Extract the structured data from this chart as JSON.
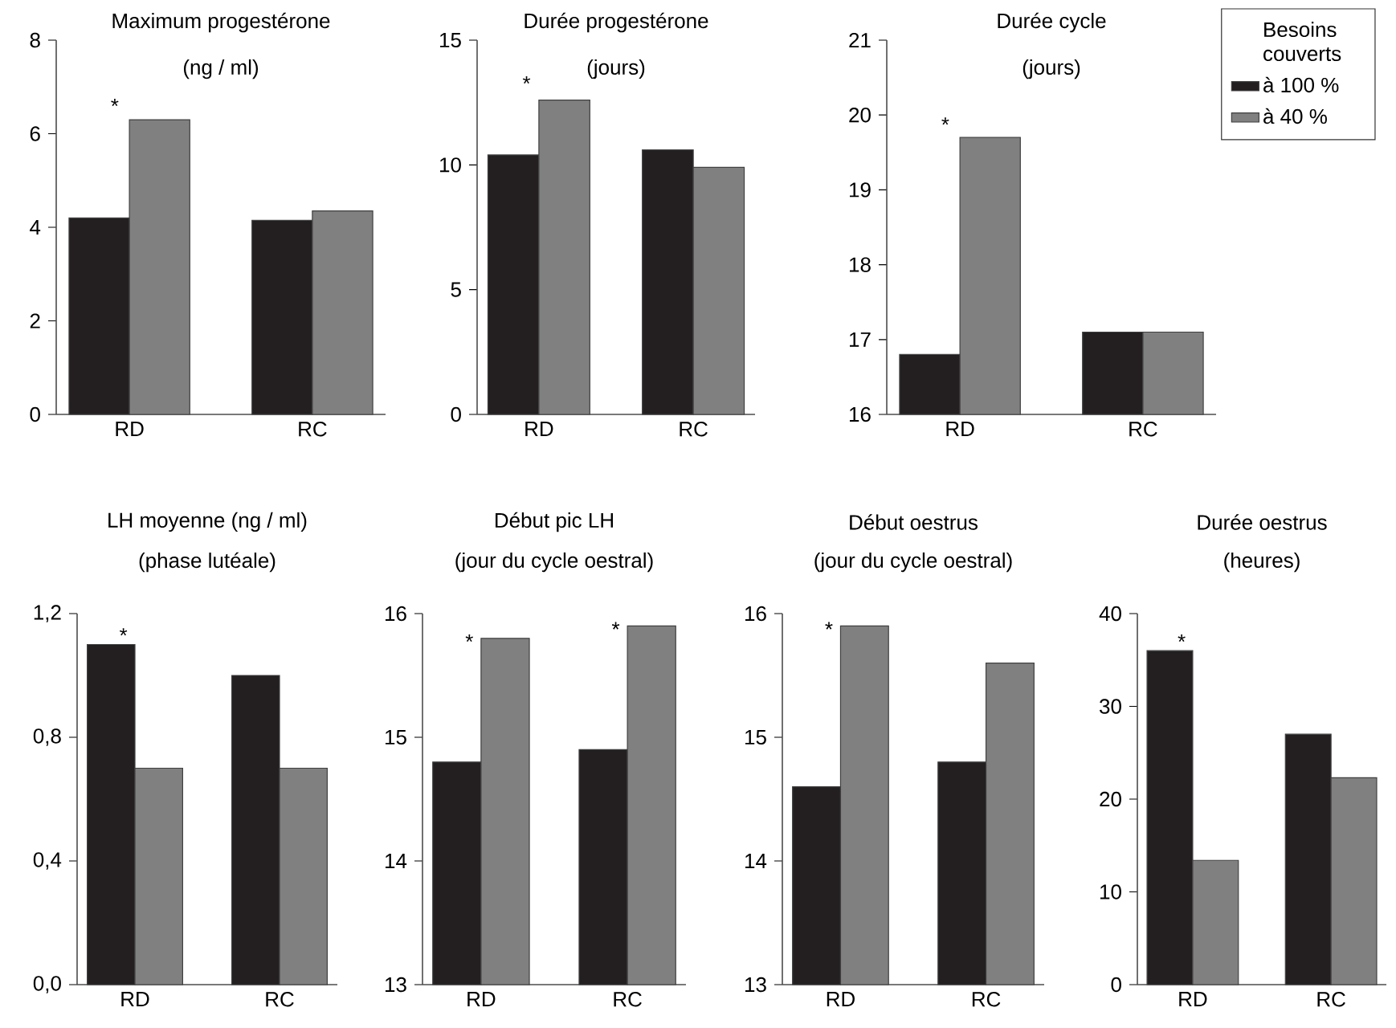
{
  "chart_data": [
    {
      "type": "bar",
      "title": "Maximum progestérone",
      "subtitle": "(ng / ml)",
      "categories": [
        "RD",
        "RC"
      ],
      "series": [
        {
          "color": "#231f20",
          "values": [
            4.2,
            4.15
          ]
        },
        {
          "color": "#808080",
          "values": [
            6.3,
            4.35
          ]
        }
      ],
      "ylim": [
        0,
        8
      ],
      "yticks": [
        0,
        2,
        4,
        6,
        8
      ],
      "annotations": [
        {
          "text": "*",
          "x": "RD",
          "y": 6.4
        }
      ]
    },
    {
      "type": "bar",
      "title": "Durée progestérone",
      "subtitle": "(jours)",
      "categories": [
        "RD",
        "RC"
      ],
      "series": [
        {
          "color": "#231f20",
          "values": [
            10.4,
            10.6
          ]
        },
        {
          "color": "#808080",
          "values": [
            12.6,
            9.9
          ]
        }
      ],
      "ylim": [
        0,
        15
      ],
      "yticks": [
        0,
        5,
        10,
        15
      ],
      "annotations": [
        {
          "text": "*",
          "x": "RD",
          "y": 12.9
        }
      ]
    },
    {
      "type": "bar",
      "title": "Durée cycle",
      "subtitle": "(jours)",
      "categories": [
        "RD",
        "RC"
      ],
      "series": [
        {
          "name": "à 100 %",
          "color": "#231f20",
          "values": [
            16.8,
            17.1
          ]
        },
        {
          "name": "à 40 %",
          "color": "#808080",
          "values": [
            19.7,
            17.1
          ]
        }
      ],
      "ylim": [
        16,
        21
      ],
      "yticks": [
        16,
        17,
        18,
        19,
        20,
        21
      ],
      "legend": "right",
      "legend_title": "Besoins couverts",
      "annotations": [
        {
          "text": "*",
          "x": "RD",
          "y": 19.75
        }
      ]
    },
    {
      "type": "bar",
      "title": "LH moyenne (ng / ml)",
      "subtitle": "(phase lutéale)",
      "categories": [
        "RD",
        "RC"
      ],
      "series": [
        {
          "color": "#231f20",
          "values": [
            1.1,
            1.0
          ]
        },
        {
          "color": "#808080",
          "values": [
            0.7,
            0.7
          ]
        }
      ],
      "ylim": [
        0,
        1.2
      ],
      "yticks": [
        {
          "value": 0,
          "label": "0,0"
        },
        {
          "value": 0.4,
          "label": "0,4"
        },
        {
          "value": 0.8,
          "label": "0,8"
        },
        {
          "value": 1.2,
          "label": "1,2"
        }
      ],
      "annotations": [
        {
          "text": "*",
          "x": "RD",
          "y": 1.1
        }
      ]
    },
    {
      "type": "bar",
      "title": "Début pic LH",
      "subtitle": "(jour du cycle oestral)",
      "categories": [
        "RD",
        "RC"
      ],
      "series": [
        {
          "color": "#231f20",
          "values": [
            14.8,
            14.9
          ]
        },
        {
          "color": "#808080",
          "values": [
            15.8,
            15.9
          ]
        }
      ],
      "ylim": [
        13,
        16
      ],
      "yticks": [
        13,
        14,
        15,
        16
      ],
      "annotations": [
        {
          "text": "*",
          "x": "RD",
          "y": 15.7
        },
        {
          "text": "*",
          "x": "RC",
          "y": 15.8
        }
      ]
    },
    {
      "type": "bar",
      "title": "Début oestrus",
      "subtitle": "(jour du cycle oestral)",
      "categories": [
        "RD",
        "RC"
      ],
      "series": [
        {
          "color": "#231f20",
          "values": [
            14.6,
            14.8
          ]
        },
        {
          "color": "#808080",
          "values": [
            15.9,
            15.6
          ]
        }
      ],
      "ylim": [
        13,
        16
      ],
      "yticks": [
        13,
        14,
        15,
        16
      ],
      "annotations": [
        {
          "text": "*",
          "x": "RD",
          "y": 15.8
        }
      ]
    },
    {
      "type": "bar",
      "title": "Durée oestrus",
      "subtitle": "(heures)",
      "categories": [
        "RD",
        "RC"
      ],
      "series": [
        {
          "color": "#231f20",
          "values": [
            36,
            27
          ]
        },
        {
          "color": "#808080",
          "values": [
            13.4,
            22.3
          ]
        }
      ],
      "ylim": [
        0,
        40
      ],
      "yticks": [
        0,
        10,
        20,
        30,
        40
      ],
      "annotations": [
        {
          "text": "*",
          "x": "RD",
          "y": 36
        }
      ]
    }
  ]
}
